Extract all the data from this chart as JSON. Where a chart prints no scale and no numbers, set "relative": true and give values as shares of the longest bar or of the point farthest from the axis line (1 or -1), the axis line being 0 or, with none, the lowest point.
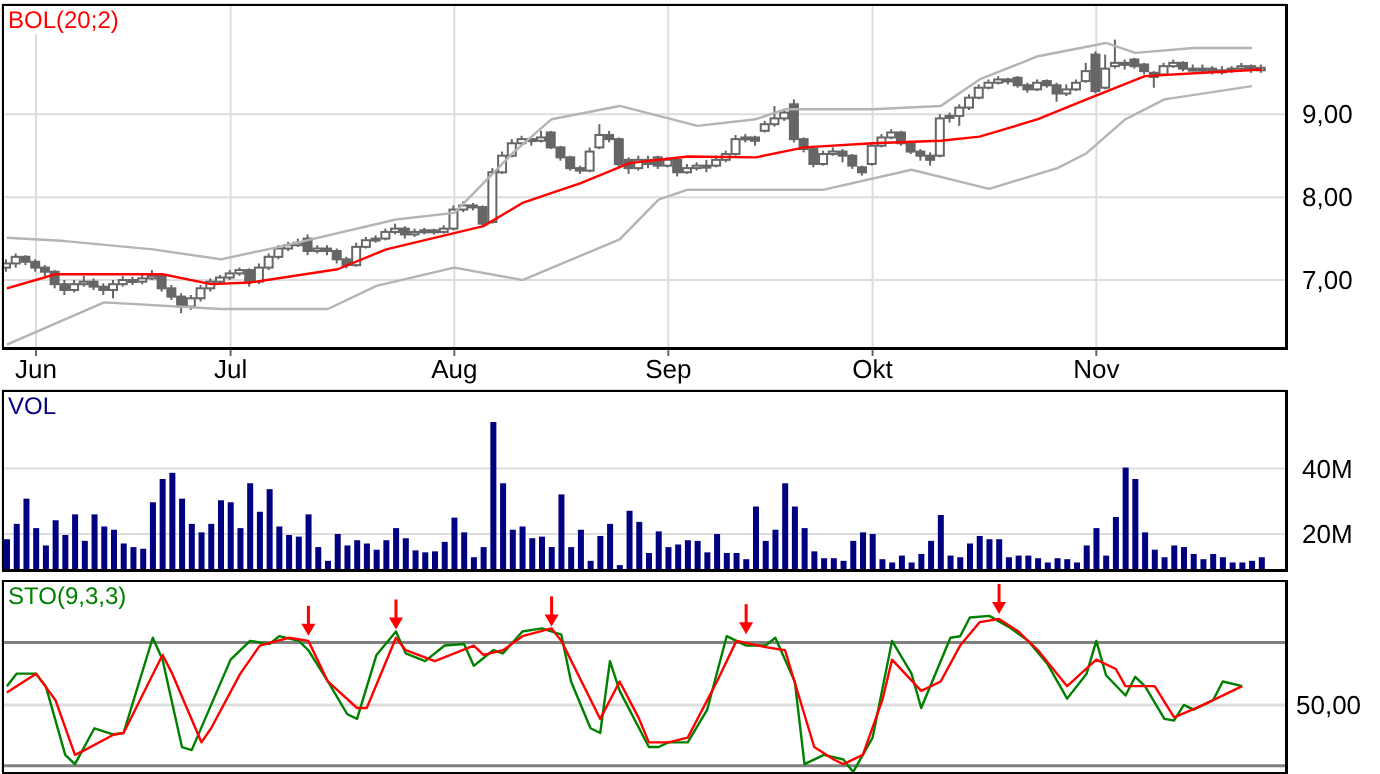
{
  "chart_data": [
    {
      "type": "candlestick",
      "title": "BOL(20;2)",
      "grid": true,
      "ylim": [
        6.18,
        10.33
      ],
      "yticks": [
        {
          "value": 7,
          "label": "7,00"
        },
        {
          "value": 8,
          "label": "8,00"
        },
        {
          "value": 9,
          "label": "9,00"
        }
      ],
      "categories": [
        null,
        null,
        null,
        "Jun",
        null,
        null,
        null,
        null,
        null,
        null,
        null,
        null,
        null,
        null,
        null,
        null,
        null,
        null,
        null,
        null,
        null,
        null,
        null,
        "Jul",
        null,
        null,
        null,
        null,
        null,
        null,
        null,
        null,
        null,
        null,
        null,
        null,
        null,
        null,
        null,
        null,
        null,
        null,
        null,
        null,
        null,
        null,
        "Aug",
        null,
        null,
        null,
        null,
        null,
        null,
        null,
        null,
        null,
        null,
        null,
        null,
        null,
        null,
        null,
        null,
        null,
        null,
        null,
        null,
        null,
        "Sep",
        null,
        null,
        null,
        null,
        null,
        null,
        null,
        null,
        null,
        null,
        null,
        null,
        null,
        null,
        null,
        null,
        null,
        null,
        null,
        null,
        "Okt",
        null,
        null,
        null,
        null,
        null,
        null,
        null,
        null,
        null,
        null,
        null,
        null,
        null,
        null,
        null,
        null,
        null,
        null,
        null,
        null,
        null,
        null,
        "Nov",
        null,
        null,
        null,
        null,
        null,
        null,
        null,
        null,
        null,
        null,
        null,
        null,
        null,
        null,
        null,
        null,
        null
      ],
      "series": [
        {
          "type": "candlestick",
          "color": "#666666",
          "ohlc": [
            [
              7.15,
              7.25,
              7.1,
              7.2
            ],
            [
              7.2,
              7.32,
              7.15,
              7.28
            ],
            [
              7.28,
              7.3,
              7.18,
              7.22
            ],
            [
              7.22,
              7.25,
              7.1,
              7.15
            ],
            [
              7.15,
              7.18,
              7.05,
              7.1
            ],
            [
              7.1,
              7.12,
              6.9,
              6.95
            ],
            [
              6.95,
              7.0,
              6.82,
              6.88
            ],
            [
              6.88,
              7.0,
              6.85,
              6.95
            ],
            [
              6.95,
              7.05,
              6.92,
              6.98
            ],
            [
              6.98,
              7.02,
              6.88,
              6.92
            ],
            [
              6.92,
              6.96,
              6.82,
              6.88
            ],
            [
              6.88,
              7.0,
              6.78,
              6.95
            ],
            [
              6.95,
              7.05,
              6.92,
              7.0
            ],
            [
              7.0,
              7.04,
              6.94,
              6.98
            ],
            [
              6.98,
              7.08,
              6.95,
              7.02
            ],
            [
              7.02,
              7.12,
              7.0,
              7.05
            ],
            [
              7.05,
              7.08,
              6.86,
              6.9
            ],
            [
              6.9,
              6.94,
              6.76,
              6.8
            ],
            [
              6.8,
              6.84,
              6.6,
              6.68
            ],
            [
              6.68,
              6.82,
              6.64,
              6.78
            ],
            [
              6.78,
              6.94,
              6.74,
              6.9
            ],
            [
              6.9,
              7.02,
              6.86,
              6.98
            ],
            [
              6.98,
              7.06,
              6.95,
              7.03
            ],
            [
              7.03,
              7.12,
              7.0,
              7.08
            ],
            [
              7.08,
              7.15,
              7.05,
              7.12
            ],
            [
              7.12,
              7.14,
              6.92,
              6.98
            ],
            [
              6.98,
              7.2,
              6.95,
              7.15
            ],
            [
              7.15,
              7.32,
              7.12,
              7.28
            ],
            [
              7.28,
              7.42,
              7.25,
              7.38
            ],
            [
              7.38,
              7.46,
              7.35,
              7.42
            ],
            [
              7.42,
              7.5,
              7.4,
              7.45
            ],
            [
              7.5,
              7.55,
              7.3,
              7.35
            ],
            [
              7.35,
              7.42,
              7.32,
              7.38
            ],
            [
              7.38,
              7.42,
              7.3,
              7.35
            ],
            [
              7.35,
              7.38,
              7.2,
              7.25
            ],
            [
              7.25,
              7.28,
              7.14,
              7.18
            ],
            [
              7.18,
              7.45,
              7.16,
              7.4
            ],
            [
              7.4,
              7.52,
              7.38,
              7.48
            ],
            [
              7.48,
              7.54,
              7.45,
              7.5
            ],
            [
              7.5,
              7.62,
              7.48,
              7.58
            ],
            [
              7.58,
              7.68,
              7.55,
              7.62
            ],
            [
              7.62,
              7.65,
              7.5,
              7.55
            ],
            [
              7.55,
              7.62,
              7.52,
              7.58
            ],
            [
              7.58,
              7.63,
              7.55,
              7.6
            ],
            [
              7.6,
              7.62,
              7.55,
              7.58
            ],
            [
              7.58,
              7.66,
              7.56,
              7.62
            ],
            [
              7.62,
              7.9,
              7.6,
              7.85
            ],
            [
              7.85,
              7.95,
              7.82,
              7.9
            ],
            [
              7.9,
              7.93,
              7.84,
              7.88
            ],
            [
              7.88,
              7.9,
              7.65,
              7.68
            ],
            [
              7.7,
              8.35,
              7.68,
              8.3
            ],
            [
              8.3,
              8.55,
              8.28,
              8.5
            ],
            [
              8.5,
              8.7,
              8.48,
              8.65
            ],
            [
              8.65,
              8.74,
              8.62,
              8.7
            ],
            [
              8.7,
              8.72,
              8.62,
              8.68
            ],
            [
              8.68,
              8.8,
              8.66,
              8.72
            ],
            [
              8.78,
              8.8,
              8.58,
              8.6
            ],
            [
              8.6,
              8.62,
              8.44,
              8.48
            ],
            [
              8.48,
              8.5,
              8.32,
              8.35
            ],
            [
              8.35,
              8.38,
              8.28,
              8.32
            ],
            [
              8.32,
              8.6,
              8.3,
              8.55
            ],
            [
              8.6,
              8.88,
              8.58,
              8.75
            ],
            [
              8.75,
              8.8,
              8.66,
              8.7
            ],
            [
              8.7,
              8.72,
              8.36,
              8.4
            ],
            [
              8.45,
              8.48,
              8.28,
              8.35
            ],
            [
              8.35,
              8.5,
              8.32,
              8.45
            ],
            [
              8.45,
              8.5,
              8.35,
              8.4
            ],
            [
              8.48,
              8.5,
              8.34,
              8.38
            ],
            [
              8.38,
              8.48,
              8.36,
              8.45
            ],
            [
              8.45,
              8.47,
              8.25,
              8.3
            ],
            [
              8.3,
              8.4,
              8.28,
              8.35
            ],
            [
              8.35,
              8.42,
              8.32,
              8.38
            ],
            [
              8.38,
              8.45,
              8.3,
              8.38
            ],
            [
              8.38,
              8.5,
              8.36,
              8.45
            ],
            [
              8.45,
              8.56,
              8.42,
              8.52
            ],
            [
              8.52,
              8.75,
              8.5,
              8.7
            ],
            [
              8.7,
              8.76,
              8.66,
              8.72
            ],
            [
              8.72,
              8.74,
              8.62,
              8.68
            ],
            [
              8.8,
              8.92,
              8.78,
              8.88
            ],
            [
              8.88,
              9.1,
              8.85,
              8.95
            ],
            [
              8.95,
              9.05,
              8.92,
              9.02
            ],
            [
              9.12,
              9.18,
              8.66,
              8.7
            ],
            [
              8.7,
              8.72,
              8.54,
              8.58
            ],
            [
              8.58,
              8.62,
              8.36,
              8.4
            ],
            [
              8.4,
              8.56,
              8.38,
              8.52
            ],
            [
              8.52,
              8.6,
              8.5,
              8.55
            ],
            [
              8.55,
              8.58,
              8.42,
              8.5
            ],
            [
              8.5,
              8.52,
              8.34,
              8.38
            ],
            [
              8.36,
              8.38,
              8.26,
              8.3
            ],
            [
              8.4,
              8.66,
              8.38,
              8.62
            ],
            [
              8.62,
              8.76,
              8.6,
              8.72
            ],
            [
              8.72,
              8.82,
              8.7,
              8.78
            ],
            [
              8.78,
              8.8,
              8.62,
              8.65
            ],
            [
              8.65,
              8.68,
              8.52,
              8.55
            ],
            [
              8.55,
              8.58,
              8.44,
              8.5
            ],
            [
              8.5,
              8.54,
              8.38,
              8.45
            ],
            [
              8.5,
              9.0,
              8.48,
              8.95
            ],
            [
              8.98,
              9.02,
              8.9,
              8.98
            ],
            [
              8.98,
              9.12,
              8.86,
              9.08
            ],
            [
              9.08,
              9.24,
              9.05,
              9.2
            ],
            [
              9.2,
              9.36,
              9.18,
              9.32
            ],
            [
              9.32,
              9.42,
              9.3,
              9.38
            ],
            [
              9.38,
              9.46,
              9.36,
              9.42
            ],
            [
              9.42,
              9.44,
              9.36,
              9.4
            ],
            [
              9.44,
              9.46,
              9.32,
              9.35
            ],
            [
              9.35,
              9.38,
              9.26,
              9.3
            ],
            [
              9.3,
              9.42,
              9.28,
              9.38
            ],
            [
              9.4,
              9.42,
              9.32,
              9.35
            ],
            [
              9.35,
              9.38,
              9.15,
              9.25
            ],
            [
              9.25,
              9.36,
              9.22,
              9.3
            ],
            [
              9.3,
              9.42,
              9.28,
              9.38
            ],
            [
              9.4,
              9.62,
              9.38,
              9.52
            ],
            [
              9.72,
              9.76,
              9.25,
              9.28
            ],
            [
              9.32,
              9.72,
              9.3,
              9.55
            ],
            [
              9.58,
              9.9,
              9.55,
              9.62
            ],
            [
              9.62,
              9.66,
              9.54,
              9.6
            ],
            [
              9.66,
              9.68,
              9.55,
              9.58
            ],
            [
              9.6,
              9.62,
              9.48,
              9.52
            ],
            [
              9.5,
              9.52,
              9.32,
              9.45
            ],
            [
              9.48,
              9.62,
              9.46,
              9.58
            ],
            [
              9.58,
              9.66,
              9.56,
              9.62
            ],
            [
              9.62,
              9.64,
              9.52,
              9.55
            ],
            [
              9.55,
              9.6,
              9.52,
              9.55
            ],
            [
              9.55,
              9.6,
              9.5,
              9.55
            ],
            [
              9.55,
              9.58,
              9.48,
              9.52
            ],
            [
              9.52,
              9.58,
              9.48,
              9.53
            ],
            [
              9.53,
              9.58,
              9.5,
              9.55
            ],
            [
              9.55,
              9.62,
              9.54,
              9.58
            ],
            [
              9.58,
              9.6,
              9.5,
              9.55
            ],
            [
              9.53,
              9.6,
              9.5,
              9.56
            ]
          ]
        },
        {
          "type": "line",
          "color": "#ff0000",
          "values": [
            6.9,
            null,
            null,
            null,
            null,
            7.07,
            null,
            null,
            null,
            null,
            null,
            null,
            null,
            null,
            null,
            null,
            7.07,
            null,
            null,
            null,
            null,
            6.95,
            null,
            null,
            null,
            6.97,
            null,
            null,
            null,
            null,
            null,
            null,
            null,
            null,
            7.13,
            null,
            null,
            null,
            null,
            7.37,
            null,
            null,
            null,
            null,
            null,
            null,
            null,
            null,
            null,
            7.65,
            null,
            null,
            null,
            7.93,
            null,
            null,
            null,
            null,
            null,
            8.17,
            null,
            null,
            null,
            null,
            8.41,
            null,
            null,
            null,
            null,
            null,
            8.49,
            null,
            null,
            null,
            null,
            null,
            null,
            8.48,
            null,
            null,
            null,
            null,
            8.6,
            null,
            null,
            null,
            null,
            null,
            null,
            8.65,
            null,
            null,
            null,
            null,
            null,
            null,
            8.68,
            null,
            null,
            null,
            8.73,
            null,
            null,
            null,
            null,
            null,
            8.94,
            null,
            null,
            null,
            null,
            9.18,
            null,
            null,
            null,
            null,
            null,
            9.46,
            null,
            null,
            null,
            null,
            null,
            9.5,
            null,
            null,
            null,
            null,
            null,
            9.54
          ]
        },
        {
          "type": "line",
          "color": "#b4b4b4",
          "values": [
            7.51,
            null,
            null,
            null,
            null,
            null,
            7.47,
            null,
            null,
            null,
            null,
            null,
            null,
            null,
            null,
            7.37,
            null,
            null,
            null,
            null,
            null,
            null,
            7.25,
            null,
            null,
            null,
            null,
            null,
            7.4,
            null,
            null,
            null,
            null,
            null,
            null,
            null,
            null,
            null,
            null,
            null,
            7.73,
            null,
            null,
            null,
            null,
            null,
            7.81,
            null,
            null,
            null,
            null,
            null,
            8.53,
            null,
            null,
            null,
            8.94,
            null,
            null,
            null,
            null,
            null,
            null,
            9.1,
            null,
            null,
            null,
            8.98,
            null,
            null,
            null,
            8.86,
            null,
            null,
            null,
            null,
            null,
            8.94,
            null,
            null,
            9.06,
            null,
            null,
            null,
            null,
            null,
            null,
            null,
            null,
            9.06,
            null,
            null,
            null,
            null,
            null,
            null,
            9.1,
            null,
            null,
            null,
            9.42,
            null,
            null,
            null,
            null,
            null,
            9.7,
            null,
            null,
            null,
            null,
            null,
            null,
            9.86,
            null,
            null,
            9.74,
            null,
            null,
            null,
            null,
            null,
            9.8,
            null,
            null,
            null,
            null,
            null,
            9.8,
            null
          ]
        },
        {
          "type": "line",
          "color": "#b4b4b4",
          "values": [
            6.22,
            null,
            null,
            null,
            null,
            null,
            null,
            null,
            null,
            null,
            6.73,
            null,
            null,
            null,
            null,
            null,
            null,
            null,
            null,
            null,
            null,
            null,
            6.65,
            null,
            null,
            null,
            null,
            null,
            null,
            null,
            null,
            null,
            null,
            6.65,
            null,
            null,
            null,
            null,
            6.93,
            null,
            null,
            null,
            null,
            null,
            null,
            null,
            7.15,
            null,
            null,
            null,
            null,
            null,
            null,
            7.0,
            null,
            null,
            null,
            null,
            null,
            null,
            null,
            null,
            null,
            7.49,
            null,
            null,
            null,
            7.97,
            null,
            null,
            8.09,
            null,
            null,
            null,
            null,
            null,
            null,
            8.09,
            null,
            null,
            null,
            null,
            null,
            null,
            8.09,
            null,
            null,
            null,
            null,
            null,
            null,
            null,
            null,
            8.33,
            null,
            null,
            null,
            null,
            null,
            null,
            null,
            8.1,
            null,
            null,
            null,
            null,
            null,
            null,
            8.35,
            null,
            null,
            8.53,
            null,
            null,
            null,
            8.94,
            null,
            null,
            null,
            9.18,
            null,
            null,
            null,
            null,
            null,
            null,
            null,
            null,
            9.34,
            null
          ]
        }
      ]
    },
    {
      "type": "bar",
      "title": "VOL",
      "grid": true,
      "tick_labels": "y",
      "color": "#000080",
      "ylim": [
        9,
        64
      ],
      "yticks": [
        {
          "value": 20,
          "label": "20M"
        },
        {
          "value": 40,
          "label": "40M"
        }
      ],
      "categories": [
        null,
        null,
        null,
        null,
        null,
        null,
        null,
        null,
        null,
        null,
        null,
        null,
        null,
        null,
        null,
        null,
        null,
        null,
        null,
        null,
        null,
        null,
        null,
        null,
        null,
        null,
        null,
        null,
        null,
        null,
        null,
        null,
        null,
        null,
        null,
        null,
        null,
        null,
        null,
        null,
        null,
        null,
        null,
        null,
        null,
        null,
        null,
        null,
        null,
        null,
        null,
        null,
        null,
        null,
        null,
        null,
        null,
        null,
        null,
        null,
        null,
        null,
        null,
        null,
        null,
        null,
        null,
        null,
        null,
        null,
        null,
        null,
        null,
        null,
        null,
        null,
        null,
        null,
        null,
        null,
        null,
        null,
        null,
        null,
        null,
        null,
        null,
        null,
        null,
        null,
        null,
        null,
        null,
        null,
        null,
        null,
        null,
        null,
        null,
        null,
        null,
        null,
        null,
        null,
        null,
        null,
        null,
        null,
        null,
        null,
        null,
        null,
        null,
        null,
        null,
        null,
        null,
        null,
        null,
        null,
        null,
        null,
        null,
        null,
        null,
        null,
        null,
        null,
        null,
        null
      ],
      "values": [
        18.4,
        23.1,
        30.8,
        21.8,
        16.5,
        24.2,
        19.7,
        26.0,
        17.9,
        26.0,
        22.3,
        21.3,
        17.1,
        16.0,
        15.5,
        29.7,
        36.8,
        38.7,
        30.8,
        23.1,
        20.5,
        23.1,
        30.3,
        29.7,
        21.8,
        35.5,
        26.8,
        33.7,
        22.3,
        19.7,
        19.2,
        26.0,
        16.0,
        11.8,
        20.0,
        16.5,
        18.1,
        17.1,
        15.2,
        18.1,
        21.8,
        18.7,
        15.0,
        14.4,
        14.7,
        17.6,
        25.0,
        20.5,
        12.9,
        16.0,
        54.2,
        35.5,
        21.3,
        22.3,
        18.7,
        19.2,
        16.0,
        32.1,
        16.0,
        21.3,
        11.8,
        19.4,
        23.1,
        10.5,
        27.1,
        23.7,
        14.2,
        20.8,
        16.0,
        16.8,
        18.1,
        17.9,
        14.4,
        20.0,
        14.2,
        14.2,
        12.3,
        28.4,
        17.9,
        21.3,
        35.5,
        28.4,
        21.8,
        14.7,
        12.6,
        12.6,
        11.8,
        17.9,
        20.5,
        20.0,
        12.3,
        11.3,
        13.4,
        11.3,
        13.9,
        17.9,
        25.8,
        13.4,
        12.9,
        17.1,
        19.4,
        18.4,
        18.4,
        12.9,
        13.4,
        13.4,
        12.6,
        11.3,
        12.6,
        12.3,
        11.3,
        16.5,
        21.8,
        13.4,
        25.2,
        40.3,
        36.8,
        20.5,
        15.2,
        12.9,
        16.5,
        16.0,
        13.9,
        12.3,
        13.9,
        12.9,
        11.3,
        11.3,
        11.8,
        12.9
      ]
    },
    {
      "type": "line",
      "title": "STO(9,3,3)",
      "grid": "x",
      "tick_labels": "y",
      "relative": true,
      "ref_lines": [
        {
          "axis": "y",
          "value": 0.83,
          "color": "#808080"
        },
        {
          "axis": "y",
          "value": 0.04,
          "color": "#808080"
        },
        {
          "axis": "y",
          "value": 0.43,
          "color": "#dddddd"
        }
      ],
      "annotations": [
        "50,00"
      ],
      "categories": [
        null,
        null,
        null,
        null,
        null,
        null,
        null,
        null,
        null,
        null,
        null,
        null,
        null,
        null,
        null,
        null,
        null,
        null,
        null,
        null,
        null,
        null,
        null,
        null,
        null,
        null,
        null,
        null,
        null,
        null,
        null,
        null,
        null,
        null,
        null,
        null,
        null,
        null,
        null,
        null,
        null,
        null,
        null,
        null,
        null,
        null,
        null,
        null,
        null,
        null,
        null,
        null,
        null,
        null,
        null,
        null,
        null,
        null,
        null,
        null,
        null,
        null,
        null,
        null,
        null,
        null,
        null,
        null,
        null,
        null,
        null,
        null,
        null,
        null,
        null,
        null,
        null,
        null,
        null,
        null,
        null,
        null,
        null,
        null,
        null,
        null,
        null,
        null,
        null,
        null,
        null,
        null,
        null,
        null,
        null,
        null,
        null,
        null,
        null,
        null,
        null,
        null,
        null,
        null,
        null,
        null,
        null,
        null,
        null,
        null,
        null,
        null,
        null,
        null,
        null,
        null,
        null,
        null,
        null,
        null,
        null,
        null,
        null,
        null,
        null,
        null,
        null,
        null,
        null,
        null
      ],
      "series": [
        {
          "color": "#008000",
          "values": [
            0.55,
            0.63,
            null,
            0.63,
            0.55,
            null,
            0.11,
            0.05,
            null,
            0.28,
            null,
            0.24,
            0.25,
            null,
            null,
            0.86,
            0.72,
            null,
            0.16,
            0.14,
            null,
            0.43,
            null,
            0.72,
            null,
            0.84,
            null,
            0.82,
            0.87,
            null,
            0.84,
            0.78,
            null,
            0.58,
            null,
            0.37,
            0.34,
            null,
            0.75,
            null,
            0.9,
            0.76,
            null,
            0.71,
            null,
            0.81,
            null,
            0.82,
            0.68,
            null,
            0.78,
            0.76,
            null,
            0.9,
            null,
            0.92,
            null,
            0.88,
            0.58,
            null,
            0.28,
            0.25,
            0.71,
            0.52,
            null,
            null,
            0.16,
            0.16,
            0.19,
            null,
            0.19,
            null,
            0.4,
            null,
            0.87,
            null,
            0.81,
            null,
            0.81,
            0.86,
            null,
            0.58,
            0.05,
            null,
            0.11,
            null,
            0.08,
            0,
            null,
            0.22,
            null,
            0.84,
            null,
            0.63,
            0.41,
            null,
            null,
            0.86,
            0.87,
            0.99,
            null,
            1,
            null,
            0.93,
            null,
            0.84,
            null,
            0.69,
            null,
            0.47,
            null,
            0.63,
            0.84,
            0.62,
            null,
            0.49,
            0.61,
            0.55,
            null,
            0.34,
            0.33,
            0.43,
            0.4,
            null,
            0.46,
            0.58,
            null,
            0.55,
            null,
            null
          ]
        },
        {
          "color": "#ff0000",
          "values": [
            0.51,
            null,
            null,
            0.63,
            null,
            0.46,
            null,
            0.11,
            0.14,
            null,
            null,
            0.24,
            0.25,
            null,
            null,
            null,
            0.75,
            0.63,
            null,
            null,
            0.19,
            0.28,
            null,
            null,
            0.63,
            null,
            0.81,
            null,
            null,
            0.86,
            null,
            0.84,
            null,
            0.58,
            null,
            null,
            0.41,
            0.41,
            null,
            null,
            0.86,
            0.78,
            null,
            null,
            0.71,
            null,
            0.76,
            null,
            0.81,
            0.75,
            null,
            0.78,
            null,
            0.87,
            null,
            null,
            0.92,
            0.84,
            null,
            null,
            null,
            0.34,
            null,
            0.58,
            null,
            0.34,
            0.19,
            null,
            0.19,
            null,
            0.22,
            null,
            null,
            0.58,
            null,
            0.84,
            null,
            null,
            0.8,
            null,
            0.78,
            null,
            null,
            0.16,
            null,
            0.08,
            0.05,
            null,
            0.11,
            null,
            0.46,
            0.72,
            null,
            null,
            0.52,
            null,
            0.58,
            null,
            0.81,
            null,
            0.96,
            null,
            0.98,
            null,
            0.9,
            null,
            0.78,
            null,
            null,
            0.55,
            null,
            null,
            0.72,
            null,
            0.66,
            0.55,
            null,
            null,
            0.55,
            null,
            0.35,
            null,
            null,
            0.43,
            null,
            null,
            null,
            0.55,
            null,
            null
          ]
        }
      ]
    }
  ]
}
